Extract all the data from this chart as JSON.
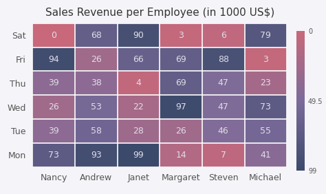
{
  "title": "Sales Revenue per Employee (in 1000 US$)",
  "rows": [
    "Sat",
    "Fri",
    "Thu",
    "Wed",
    "Tue",
    "Mon"
  ],
  "cols": [
    "Nancy",
    "Andrew",
    "Janet",
    "Margaret",
    "Steven",
    "Michael"
  ],
  "values": [
    [
      0,
      68,
      90,
      3,
      6,
      79
    ],
    [
      94,
      26,
      66,
      69,
      88,
      3
    ],
    [
      39,
      38,
      4,
      69,
      47,
      23
    ],
    [
      26,
      53,
      22,
      97,
      47,
      73
    ],
    [
      39,
      58,
      28,
      26,
      46,
      55
    ],
    [
      73,
      93,
      99,
      14,
      7,
      41
    ]
  ],
  "vmin": 0,
  "vmax": 99,
  "colorbar_ticks": [
    0,
    49.5,
    99
  ],
  "colorbar_labels": [
    "0",
    "49.5",
    "99"
  ],
  "color_low": "#c8687a",
  "color_mid": "#7b6b9a",
  "color_high": "#3b4a6b",
  "text_color": "#e0dde8",
  "grid_color": "#ffffff",
  "bg_color": "#f5f4f8",
  "title_fontsize": 11,
  "cell_fontsize": 9,
  "label_fontsize": 9
}
